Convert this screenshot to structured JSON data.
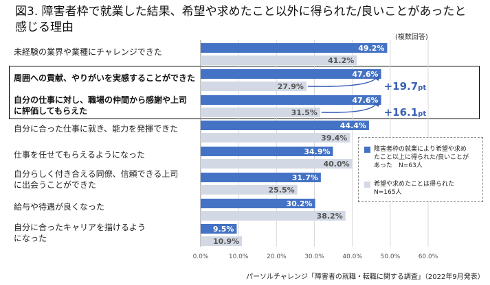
{
  "title": "図3.  障害者枠で就業した結果、希望や求めたこと以外に得られた/良いことがあったと感じる理由",
  "note": "(複数回答)",
  "source": "パーソルチャレンジ「障害者の就職・転職に関する調査」（2022年9月発表）",
  "colors": {
    "series1": "#4472c4",
    "series2": "#d3d9e4",
    "highlight_text": "#3a5fb5"
  },
  "chart_data": {
    "type": "bar",
    "orientation": "horizontal",
    "categories": [
      "未経験の業界や業種にチャレンジできた",
      "周囲への貢献、やりがいを実感することができた",
      "自分の仕事に対し、職場の仲間から感謝や上司に評価してもらえた",
      "自分に合った仕事に就き、能力を発揮できた",
      "仕事を任せてもらえるようになった",
      "自分らしく付き合える同僚、信頼できる上司に出会うことができた",
      "給与や待遇が良くなった",
      "自分に合ったキャリアを描けるようになった"
    ],
    "highlighted": [
      false,
      true,
      true,
      false,
      false,
      false,
      false,
      false
    ],
    "series": [
      {
        "name": "障害者枠の就業により希望や求めたこと以上に得られた/良いことがあった N=63人",
        "values": [
          49.2,
          47.6,
          47.6,
          44.4,
          34.9,
          31.7,
          30.2,
          9.5
        ]
      },
      {
        "name": "希望や求めたことは得られた N=165人",
        "values": [
          41.2,
          27.9,
          31.5,
          39.4,
          40.0,
          25.5,
          38.2,
          10.9
        ]
      }
    ],
    "value_labels": [
      [
        "49.2%",
        "47.6%",
        "47.6%",
        "44.4%",
        "34.9%",
        "31.7%",
        "30.2%",
        "9.5%"
      ],
      [
        "41.2%",
        "27.9%",
        "31.5%",
        "39.4%",
        "40.0%",
        "25.5%",
        "38.2%",
        "10.9%"
      ]
    ],
    "annotations": [
      {
        "category_index": 1,
        "text": "+19.7",
        "unit": "pt"
      },
      {
        "category_index": 2,
        "text": "+16.1",
        "unit": "pt"
      }
    ],
    "xlim": [
      0,
      60
    ],
    "xticks": [
      "0.0%",
      "10.0%",
      "20.0%",
      "30.0%",
      "40.0%",
      "50.0%",
      "60.0%"
    ],
    "xtick_values": [
      0,
      10,
      20,
      30,
      40,
      50,
      60
    ],
    "legend_position": "right",
    "legend": {
      "series1_lines": [
        "障害者枠の就業により希望や求め",
        "たこと以上に得られた/良いことが",
        "あった　N=63人"
      ],
      "series2_lines": [
        "希望や求めたことは得られた",
        "N=165人"
      ]
    },
    "label_lines": [
      [
        "未経験の業界や業種にチャレンジできた"
      ],
      [
        "周囲への貢献、やりがいを実感することができた"
      ],
      [
        "自分の仕事に対し、職場の仲間から感謝や上司",
        "に評価してもらえた"
      ],
      [
        "自分に合った仕事に就き、能力を発揮できた"
      ],
      [
        "仕事を任せてもらえるようになった"
      ],
      [
        "自分らしく付き合える同僚、信頼できる上司",
        "に出会うことができた"
      ],
      [
        "給与や待遇が良くなった"
      ],
      [
        "自分に合ったキャリアを描けるよう",
        "になった"
      ]
    ]
  }
}
